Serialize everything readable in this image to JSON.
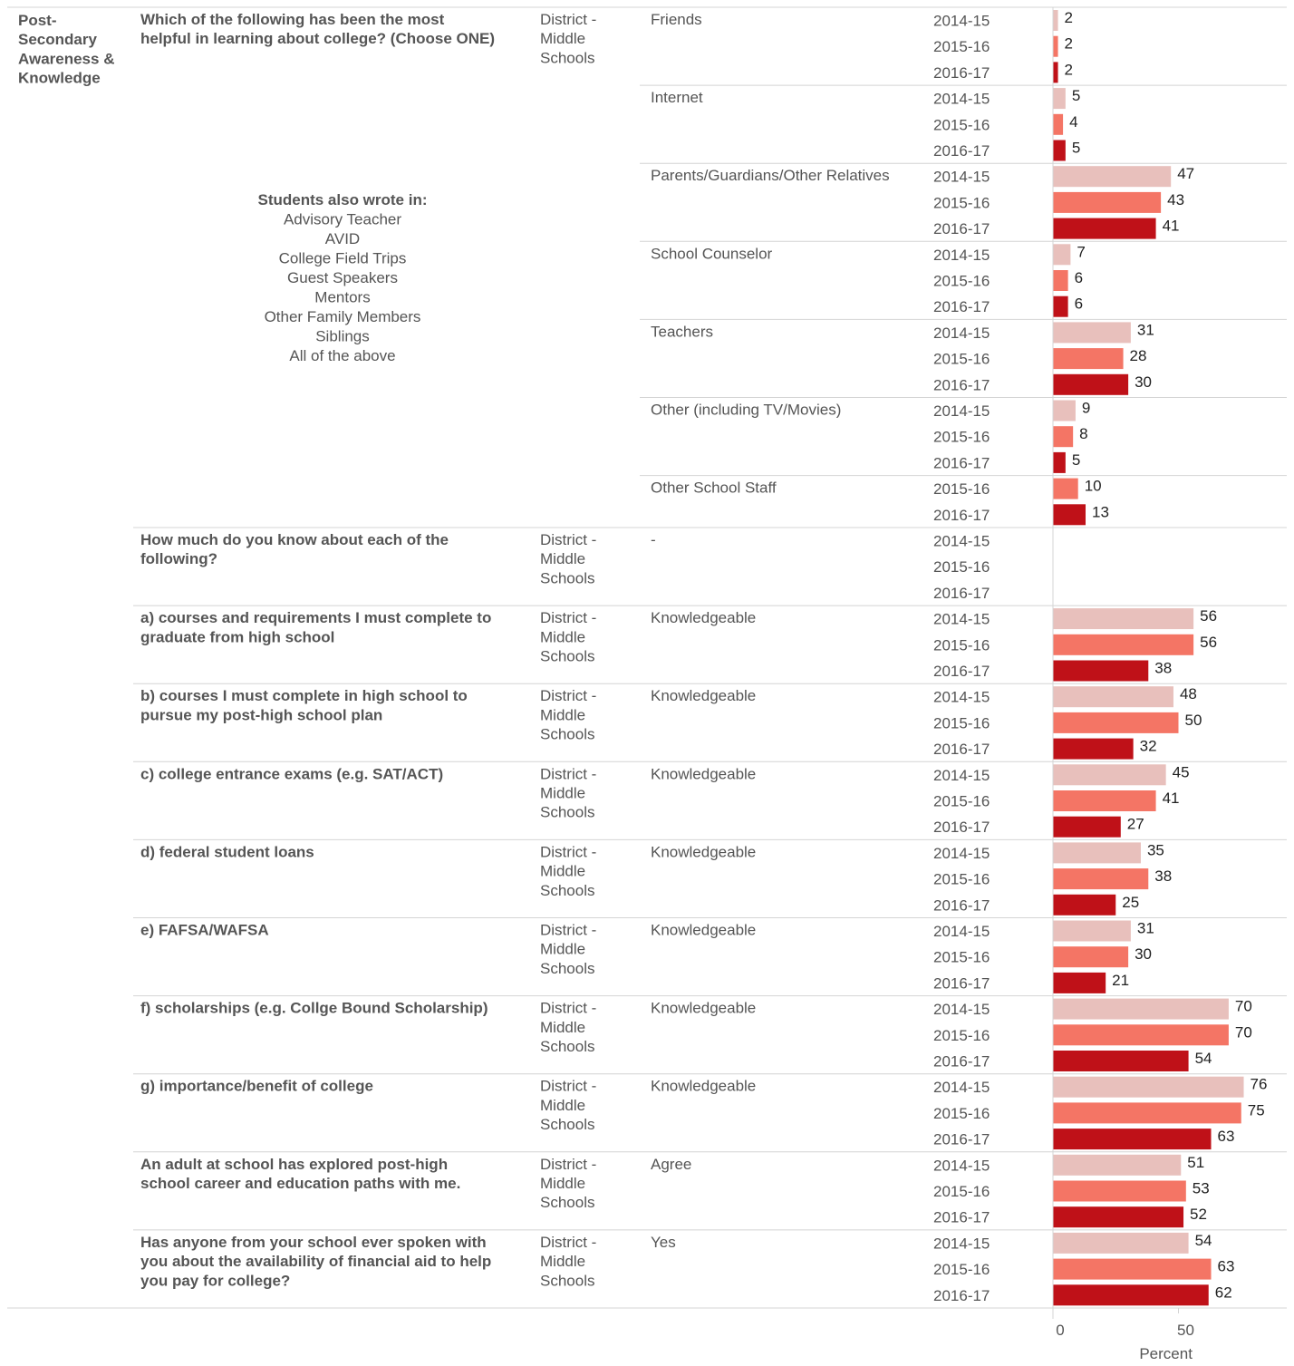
{
  "colors": {
    "2014-15": "#e8c0bc",
    "2015-16": "#f47565",
    "2016-17": "#bf1118",
    "gridline": "#d4d4d4",
    "text": "#555555"
  },
  "category_label": [
    "Post-",
    "Secondary",
    "Awareness &",
    "Knowledge"
  ],
  "write_in": {
    "title": "Students also wrote in:",
    "items": [
      "Advisory Teacher",
      "AVID",
      "College Field Trips",
      "Guest Speakers",
      "Mentors",
      "Other Family Members",
      "Siblings",
      "All of the above"
    ]
  },
  "chart_data": {
    "type": "bar",
    "orientation": "horizontal",
    "xlabel": "Percent",
    "x_ticks": [
      "0",
      "50"
    ],
    "xlim": [
      0,
      90
    ],
    "series": [
      {
        "name": "2014-15"
      },
      {
        "name": "2015-16"
      },
      {
        "name": "2016-17"
      }
    ],
    "questions": [
      {
        "q": [
          "Which of the following has been the most",
          "helpful in learning about college? (Choose ONE)"
        ],
        "group": [
          "District -",
          "Middle",
          "Schools"
        ],
        "responses": [
          {
            "label": "Friends",
            "rows": [
              {
                "year": "2014-15",
                "value": 2
              },
              {
                "year": "2015-16",
                "value": 2
              },
              {
                "year": "2016-17",
                "value": 2
              }
            ]
          },
          {
            "label": "Internet",
            "rows": [
              {
                "year": "2014-15",
                "value": 5
              },
              {
                "year": "2015-16",
                "value": 4
              },
              {
                "year": "2016-17",
                "value": 5
              }
            ]
          },
          {
            "label": "Parents/Guardians/Other Relatives",
            "rows": [
              {
                "year": "2014-15",
                "value": 47
              },
              {
                "year": "2015-16",
                "value": 43
              },
              {
                "year": "2016-17",
                "value": 41
              }
            ]
          },
          {
            "label": "School Counselor",
            "rows": [
              {
                "year": "2014-15",
                "value": 7
              },
              {
                "year": "2015-16",
                "value": 6
              },
              {
                "year": "2016-17",
                "value": 6
              }
            ]
          },
          {
            "label": "Teachers",
            "rows": [
              {
                "year": "2014-15",
                "value": 31
              },
              {
                "year": "2015-16",
                "value": 28
              },
              {
                "year": "2016-17",
                "value": 30
              }
            ]
          },
          {
            "label": "Other (including TV/Movies)",
            "rows": [
              {
                "year": "2014-15",
                "value": 9
              },
              {
                "year": "2015-16",
                "value": 8
              },
              {
                "year": "2016-17",
                "value": 5
              }
            ]
          },
          {
            "label": "Other School Staff",
            "rows": [
              {
                "year": "2015-16",
                "value": 10
              },
              {
                "year": "2016-17",
                "value": 13
              }
            ]
          }
        ]
      },
      {
        "q": [
          "How much do you know about each of the",
          "following?"
        ],
        "group": [
          "District -",
          "Middle",
          "Schools"
        ],
        "responses": [
          {
            "label": "-",
            "rows": [
              {
                "year": "2014-15",
                "value": null
              },
              {
                "year": "2015-16",
                "value": null
              },
              {
                "year": "2016-17",
                "value": null
              }
            ]
          }
        ]
      },
      {
        "q": [
          "a) courses and requirements I must complete to",
          "graduate from high school"
        ],
        "group": [
          "District -",
          "Middle",
          "Schools"
        ],
        "responses": [
          {
            "label": "Knowledgeable",
            "rows": [
              {
                "year": "2014-15",
                "value": 56
              },
              {
                "year": "2015-16",
                "value": 56
              },
              {
                "year": "2016-17",
                "value": 38
              }
            ]
          }
        ]
      },
      {
        "q": [
          "b) courses I must complete in high school to",
          "pursue my post-high school plan"
        ],
        "group": [
          "District -",
          "Middle",
          "Schools"
        ],
        "responses": [
          {
            "label": "Knowledgeable",
            "rows": [
              {
                "year": "2014-15",
                "value": 48
              },
              {
                "year": "2015-16",
                "value": 50
              },
              {
                "year": "2016-17",
                "value": 32
              }
            ]
          }
        ]
      },
      {
        "q": [
          "c) college entrance exams (e.g. SAT/ACT)"
        ],
        "group": [
          "District -",
          "Middle",
          "Schools"
        ],
        "responses": [
          {
            "label": "Knowledgeable",
            "rows": [
              {
                "year": "2014-15",
                "value": 45
              },
              {
                "year": "2015-16",
                "value": 41
              },
              {
                "year": "2016-17",
                "value": 27
              }
            ]
          }
        ]
      },
      {
        "q": [
          "d) federal student loans"
        ],
        "group": [
          "District -",
          "Middle",
          "Schools"
        ],
        "responses": [
          {
            "label": "Knowledgeable",
            "rows": [
              {
                "year": "2014-15",
                "value": 35
              },
              {
                "year": "2015-16",
                "value": 38
              },
              {
                "year": "2016-17",
                "value": 25
              }
            ]
          }
        ]
      },
      {
        "q": [
          "e) FAFSA/WAFSA"
        ],
        "group": [
          "District -",
          "Middle",
          "Schools"
        ],
        "responses": [
          {
            "label": "Knowledgeable",
            "rows": [
              {
                "year": "2014-15",
                "value": 31
              },
              {
                "year": "2015-16",
                "value": 30
              },
              {
                "year": "2016-17",
                "value": 21
              }
            ]
          }
        ]
      },
      {
        "q": [
          "f) scholarships (e.g. Collge Bound Scholarship)"
        ],
        "group": [
          "District -",
          "Middle",
          "Schools"
        ],
        "responses": [
          {
            "label": "Knowledgeable",
            "rows": [
              {
                "year": "2014-15",
                "value": 70
              },
              {
                "year": "2015-16",
                "value": 70
              },
              {
                "year": "2016-17",
                "value": 54
              }
            ]
          }
        ]
      },
      {
        "q": [
          "g) importance/benefit of college"
        ],
        "group": [
          "District -",
          "Middle",
          "Schools"
        ],
        "responses": [
          {
            "label": "Knowledgeable",
            "rows": [
              {
                "year": "2014-15",
                "value": 76
              },
              {
                "year": "2015-16",
                "value": 75
              },
              {
                "year": "2016-17",
                "value": 63
              }
            ]
          }
        ]
      },
      {
        "q": [
          "An adult at school has explored post-high",
          "school career and education paths with me."
        ],
        "group": [
          "District -",
          "Middle",
          "Schools"
        ],
        "responses": [
          {
            "label": "Agree",
            "rows": [
              {
                "year": "2014-15",
                "value": 51
              },
              {
                "year": "2015-16",
                "value": 53
              },
              {
                "year": "2016-17",
                "value": 52
              }
            ]
          }
        ]
      },
      {
        "q": [
          "Has anyone from your school ever spoken with",
          "you about the availability of financial aid to help",
          "you pay for college?"
        ],
        "group": [
          "District -",
          "Middle",
          "Schools"
        ],
        "responses": [
          {
            "label": "Yes",
            "rows": [
              {
                "year": "2014-15",
                "value": 54
              },
              {
                "year": "2015-16",
                "value": 63
              },
              {
                "year": "2016-17",
                "value": 62
              }
            ]
          }
        ]
      }
    ]
  }
}
